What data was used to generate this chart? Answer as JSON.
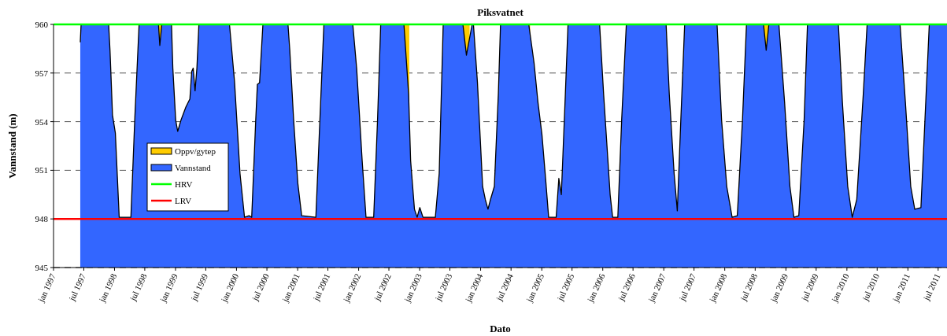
{
  "chart_data": {
    "type": "area",
    "title": "Piksvatnet",
    "xlabel": "Dato",
    "ylabel": "Vannstand (m)",
    "xlim": [
      "1997-01-01",
      "2011-08-23"
    ],
    "ylim": [
      945,
      960
    ],
    "yticks": [
      945,
      948,
      951,
      954,
      957,
      960
    ],
    "xticks": [
      {
        "value": "1997-01-01",
        "label": "jan 1997"
      },
      {
        "value": "1997-07-01",
        "label": "jul 1997"
      },
      {
        "value": "1998-01-01",
        "label": "jan 1998"
      },
      {
        "value": "1998-07-01",
        "label": "jul 1998"
      },
      {
        "value": "1999-01-01",
        "label": "jan 1999"
      },
      {
        "value": "1999-07-01",
        "label": "jul 1999"
      },
      {
        "value": "2000-01-01",
        "label": "jan 2000"
      },
      {
        "value": "2000-07-01",
        "label": "jul 2000"
      },
      {
        "value": "2001-01-01",
        "label": "jan 2001"
      },
      {
        "value": "2001-07-01",
        "label": "jul 2001"
      },
      {
        "value": "2002-01-01",
        "label": "jan 2002"
      },
      {
        "value": "2002-07-01",
        "label": "jul 2002"
      },
      {
        "value": "2003-01-01",
        "label": "jan 2003"
      },
      {
        "value": "2003-07-01",
        "label": "jul 2003"
      },
      {
        "value": "2004-01-01",
        "label": "jan 2004"
      },
      {
        "value": "2004-07-01",
        "label": "jul 2004"
      },
      {
        "value": "2005-01-01",
        "label": "jan 2005"
      },
      {
        "value": "2005-07-01",
        "label": "jul 2005"
      },
      {
        "value": "2006-01-01",
        "label": "jan 2006"
      },
      {
        "value": "2006-07-01",
        "label": "jul 2006"
      },
      {
        "value": "2007-01-01",
        "label": "jan 2007"
      },
      {
        "value": "2007-07-01",
        "label": "jul 2007"
      },
      {
        "value": "2008-01-01",
        "label": "jan 2008"
      },
      {
        "value": "2008-07-01",
        "label": "jul 2008"
      },
      {
        "value": "2009-01-01",
        "label": "jan 2009"
      },
      {
        "value": "2009-07-01",
        "label": "jul 2009"
      },
      {
        "value": "2010-01-01",
        "label": "jan 2010"
      },
      {
        "value": "2010-07-01",
        "label": "jul 2010"
      },
      {
        "value": "2011-01-01",
        "label": "jan 2011"
      },
      {
        "value": "2011-07-01",
        "label": "jul 2011"
      }
    ],
    "grid": "y",
    "legend": "center left",
    "ref_lines": [
      {
        "axis": "y",
        "value": 960,
        "label": "HRV",
        "color": "#00ff00"
      },
      {
        "axis": "y",
        "value": 948,
        "label": "LRV",
        "color": "#ff0000"
      }
    ],
    "series": [
      {
        "name": "Oppv/gytep",
        "color": "#ffcc00",
        "x": [
          "1997-09-10",
          "1997-11-04",
          "1998-01-01",
          "1998-09-01",
          "1998-11-03",
          "1999-01-01",
          "1999-09-02",
          "1999-10-30",
          "2000-01-01",
          "2000-08-29",
          "2000-10-31",
          "2001-01-01",
          "2001-09-02",
          "2001-11-04",
          "2002-01-01",
          "2002-08-29",
          "2002-10-31",
          "2003-01-01",
          "2003-08-25",
          "2003-10-27",
          "2004-01-01",
          "2004-08-29",
          "2004-10-23",
          "2005-01-01",
          "2005-08-30",
          "2005-10-19",
          "2006-01-01",
          "2006-08-29",
          "2006-10-23",
          "2007-01-01",
          "2007-08-25",
          "2007-10-23",
          "2008-01-01",
          "2008-08-17",
          "2008-10-20",
          "2009-01-01",
          "2009-08-25",
          "2009-10-20"
        ],
        "values": [
          960,
          960,
          null,
          960,
          960,
          null,
          960,
          960,
          null,
          960,
          960,
          null,
          960,
          960,
          null,
          960,
          960,
          null,
          960,
          960,
          null,
          960,
          960,
          null,
          960,
          960,
          null,
          960,
          960,
          null,
          960,
          960,
          null,
          960,
          960,
          null,
          960,
          960
        ]
      },
      {
        "name": "Vannstand",
        "color": "#3366ff",
        "x": [
          "1997-06-10",
          "1997-06-15",
          "1997-11-27",
          "1997-12-05",
          "1997-12-20",
          "1998-01-06",
          "1998-01-29",
          "1998-04-09",
          "1998-05-02",
          "1998-05-28",
          "1998-09-21",
          "1998-09-29",
          "1998-10-11",
          "1998-12-08",
          "1998-12-16",
          "1999-01-02",
          "1999-01-14",
          "1999-02-03",
          "1999-03-04",
          "1999-03-28",
          "1999-04-08",
          "1999-04-17",
          "1999-04-28",
          "1999-05-09",
          "1999-05-21",
          "1999-11-20",
          "1999-12-20",
          "2000-01-22",
          "2000-02-18",
          "2000-03-16",
          "2000-04-01",
          "2000-04-25",
          "2000-05-05",
          "2000-05-18",
          "2000-06-07",
          "2000-11-04",
          "2000-11-15",
          "2000-12-08",
          "2001-01-02",
          "2001-01-25",
          "2001-04-20",
          "2001-05-14",
          "2001-06-07",
          "2001-11-27",
          "2001-12-20",
          "2002-01-22",
          "2002-02-14",
          "2002-04-01",
          "2002-04-24",
          "2002-05-13",
          "2002-09-29",
          "2002-10-27",
          "2002-11-08",
          "2002-12-01",
          "2002-12-17",
          "2003-01-02",
          "2003-01-21",
          "2003-04-05",
          "2003-04-28",
          "2003-05-22",
          "2003-09-17",
          "2003-10-08",
          "2003-11-11",
          "2003-11-19",
          "2003-12-13",
          "2004-01-13",
          "2004-01-29",
          "2004-02-14",
          "2004-02-29",
          "2004-03-23",
          "2004-04-16",
          "2004-04-29",
          "2004-10-15",
          "2004-11-16",
          "2004-12-09",
          "2005-01-02",
          "2005-01-26",
          "2005-02-11",
          "2005-03-28",
          "2005-04-13",
          "2005-04-28",
          "2005-05-22",
          "2005-06-07",
          "2005-12-13",
          "2006-01-06",
          "2006-02-14",
          "2006-03-01",
          "2006-04-01",
          "2006-04-24",
          "2006-05-22",
          "2007-01-15",
          "2007-02-03",
          "2007-03-04",
          "2007-03-23",
          "2007-04-13",
          "2007-05-06",
          "2007-11-16",
          "2007-12-13",
          "2008-01-13",
          "2008-02-14",
          "2008-03-16",
          "2008-04-16",
          "2008-05-10",
          "2008-08-20",
          "2008-09-05",
          "2008-09-21",
          "2008-11-20",
          "2008-12-24",
          "2009-01-25",
          "2009-02-18",
          "2009-03-19",
          "2009-04-20",
          "2009-05-10",
          "2009-11-11",
          "2009-12-05",
          "2010-01-06",
          "2010-02-02",
          "2010-03-01",
          "2010-04-09",
          "2010-05-02",
          "2010-11-15",
          "2010-12-17",
          "2011-01-18",
          "2011-02-11",
          "2011-03-20",
          "2011-04-13",
          "2011-05-09",
          "2011-08-23"
        ],
        "values": [
          958.9,
          960,
          960,
          958.4,
          954.4,
          953.3,
          948.1,
          948.1,
          954.1,
          960,
          960,
          958.7,
          960,
          960,
          957.3,
          954.1,
          953.4,
          954.1,
          954.9,
          955.4,
          957.1,
          957.3,
          955.9,
          957.3,
          960,
          960,
          956.5,
          950.8,
          948.1,
          948.2,
          948.1,
          954.1,
          956.3,
          956.4,
          960,
          960,
          958.4,
          954.1,
          950.2,
          948.2,
          948.1,
          954.1,
          960,
          960,
          957.3,
          951.6,
          948.1,
          948.1,
          954.1,
          960,
          960,
          955.7,
          951.6,
          948.6,
          948.1,
          948.7,
          948.1,
          948.1,
          950.8,
          960,
          960,
          958.1,
          960,
          960,
          956.4,
          950.0,
          949.2,
          948.6,
          949.2,
          950.0,
          955.7,
          960,
          960,
          957.6,
          955.2,
          953.2,
          950.2,
          948.1,
          948.1,
          950.5,
          949.5,
          955.7,
          960,
          960,
          955.7,
          949.5,
          948.1,
          948.1,
          954.1,
          960,
          960,
          955.7,
          950.8,
          948.5,
          954.1,
          960,
          960,
          954.1,
          950.0,
          948.1,
          948.2,
          954.1,
          960,
          960,
          958.4,
          960,
          960,
          955.2,
          950.0,
          948.1,
          948.2,
          954.1,
          960,
          960,
          955.2,
          950.0,
          948.1,
          949.2,
          955.7,
          960,
          960,
          955.2,
          950.0,
          948.6,
          948.7,
          954.1,
          960,
          960
        ]
      }
    ]
  }
}
